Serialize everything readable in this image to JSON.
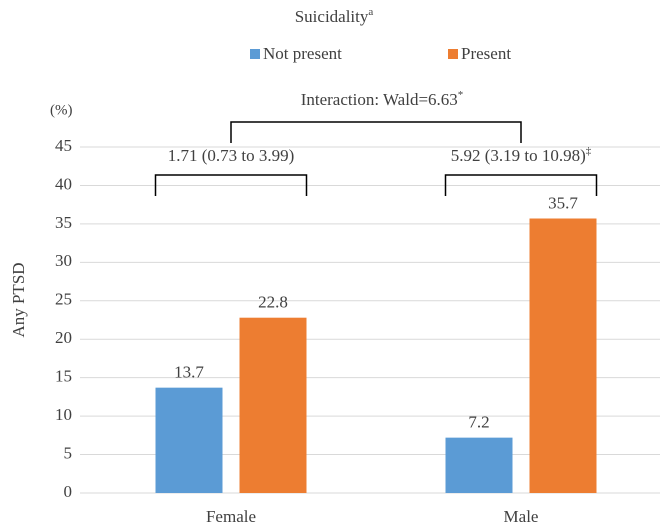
{
  "chart_data": {
    "type": "bar",
    "title": "Suicidality",
    "title_superscript": "a",
    "y_label": "Any PTSD",
    "y_unit": "(%)",
    "categories": [
      "Female",
      "Male"
    ],
    "series": [
      {
        "name": "Not present",
        "color": "#5b9bd5",
        "values": [
          13.7,
          7.2
        ]
      },
      {
        "name": "Present",
        "color": "#ed7d31",
        "values": [
          22.8,
          35.7
        ]
      }
    ],
    "ylim": [
      0,
      45
    ],
    "yticks": [
      0,
      5,
      10,
      15,
      20,
      25,
      30,
      35,
      40,
      45
    ],
    "grid": true,
    "annotations": [
      {
        "text": "Interaction: Wald=6.63",
        "superscript": "*"
      },
      {
        "text": "1.71 (0.73 to 3.99)"
      },
      {
        "text": "5.92 (3.19 to 10.98)",
        "superscript": "‡"
      }
    ]
  }
}
